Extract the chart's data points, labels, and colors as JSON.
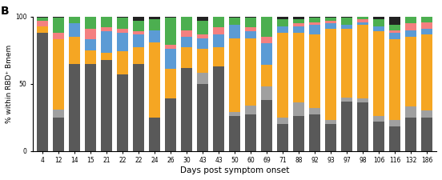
{
  "days_labels": [
    "4",
    "12",
    "14",
    "15",
    "21",
    "22",
    "22",
    "24",
    "26",
    "30",
    "43",
    "43",
    "50",
    "60",
    "69",
    "71",
    "88",
    "92",
    "93",
    "97",
    "98",
    "106",
    "116",
    "132",
    "186"
  ],
  "segments": [
    [
      88,
      0,
      5,
      0,
      4,
      2,
      1
    ],
    [
      25,
      6,
      52,
      0,
      5,
      11,
      1
    ],
    [
      65,
      0,
      20,
      10,
      0,
      5,
      0
    ],
    [
      65,
      0,
      10,
      8,
      8,
      9,
      0
    ],
    [
      68,
      0,
      5,
      16,
      3,
      8,
      0
    ],
    [
      57,
      0,
      17,
      14,
      3,
      8,
      1
    ],
    [
      65,
      0,
      12,
      10,
      2,
      8,
      3
    ],
    [
      25,
      0,
      56,
      9,
      0,
      8,
      2
    ],
    [
      39,
      0,
      22,
      15,
      3,
      20,
      1
    ],
    [
      62,
      0,
      15,
      8,
      5,
      10,
      0
    ],
    [
      50,
      8,
      18,
      8,
      3,
      10,
      3
    ],
    [
      63,
      0,
      14,
      10,
      5,
      8,
      0
    ],
    [
      26,
      3,
      55,
      10,
      0,
      5,
      1
    ],
    [
      27,
      7,
      50,
      5,
      3,
      7,
      1
    ],
    [
      38,
      10,
      16,
      16,
      5,
      15,
      0
    ],
    [
      20,
      5,
      63,
      5,
      0,
      5,
      2
    ],
    [
      26,
      10,
      52,
      5,
      2,
      3,
      2
    ],
    [
      27,
      5,
      55,
      7,
      2,
      3,
      1
    ],
    [
      20,
      3,
      68,
      4,
      2,
      2,
      1
    ],
    [
      37,
      3,
      51,
      3,
      0,
      5,
      1
    ],
    [
      36,
      3,
      55,
      2,
      2,
      2,
      0
    ],
    [
      22,
      4,
      63,
      4,
      0,
      5,
      2
    ],
    [
      18,
      5,
      60,
      5,
      2,
      4,
      6
    ],
    [
      25,
      8,
      52,
      5,
      5,
      5,
      0
    ],
    [
      25,
      5,
      57,
      4,
      5,
      4,
      0
    ]
  ],
  "seg_colors": [
    "#595959",
    "#A0A0A0",
    "#F5A623",
    "#5B9BD5",
    "#F48080",
    "#4CAF50",
    "#222222"
  ],
  "ylabel": "% within RBD⁺ Bmem",
  "xlabel": "Days post symptom onset",
  "panel_label": "B",
  "bar_width": 0.72,
  "ylim": [
    0,
    100
  ],
  "yticks": [
    0,
    50,
    100
  ],
  "ylabel_fontsize": 6.5,
  "xlabel_fontsize": 7.5,
  "tick_fontsize": 5.5
}
